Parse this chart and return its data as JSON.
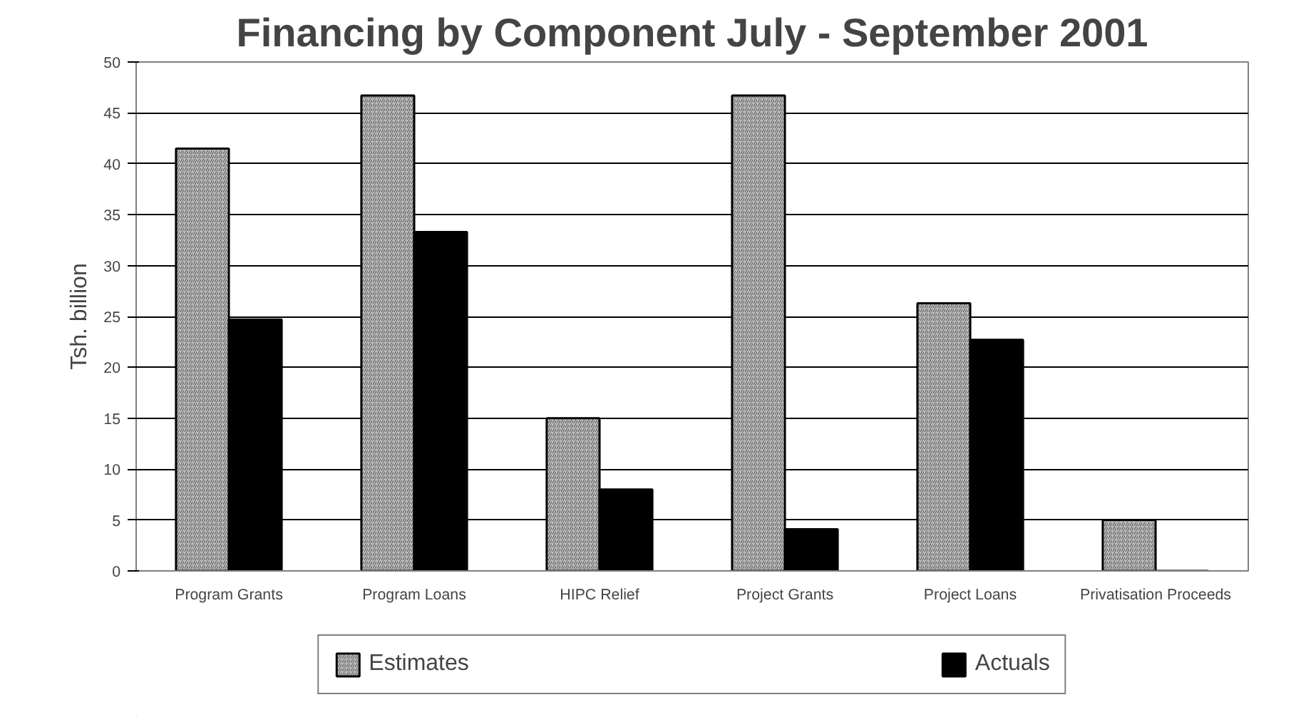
{
  "chart_data": {
    "type": "bar",
    "title": "Financing by Component July - September 2001",
    "ylabel": "Tsh. billion",
    "categories": [
      "Program Grants",
      "Program Loans",
      "HIPC Relief",
      "Project Grants",
      "Project Loans",
      "Privatisation Proceeds"
    ],
    "series": [
      {
        "name": "Estimates",
        "color": "#c0c0c0",
        "values": [
          41.5,
          46.7,
          15.0,
          46.7,
          26.3,
          5.0
        ]
      },
      {
        "name": "Actuals",
        "color": "#000000",
        "values": [
          24.7,
          33.3,
          8.0,
          4.1,
          22.7,
          0
        ]
      }
    ],
    "ylim": [
      0,
      50
    ],
    "yticks": [
      0,
      5,
      10,
      15,
      20,
      25,
      30,
      35,
      40,
      45,
      50
    ],
    "grid": "y",
    "legend": "bottom"
  }
}
